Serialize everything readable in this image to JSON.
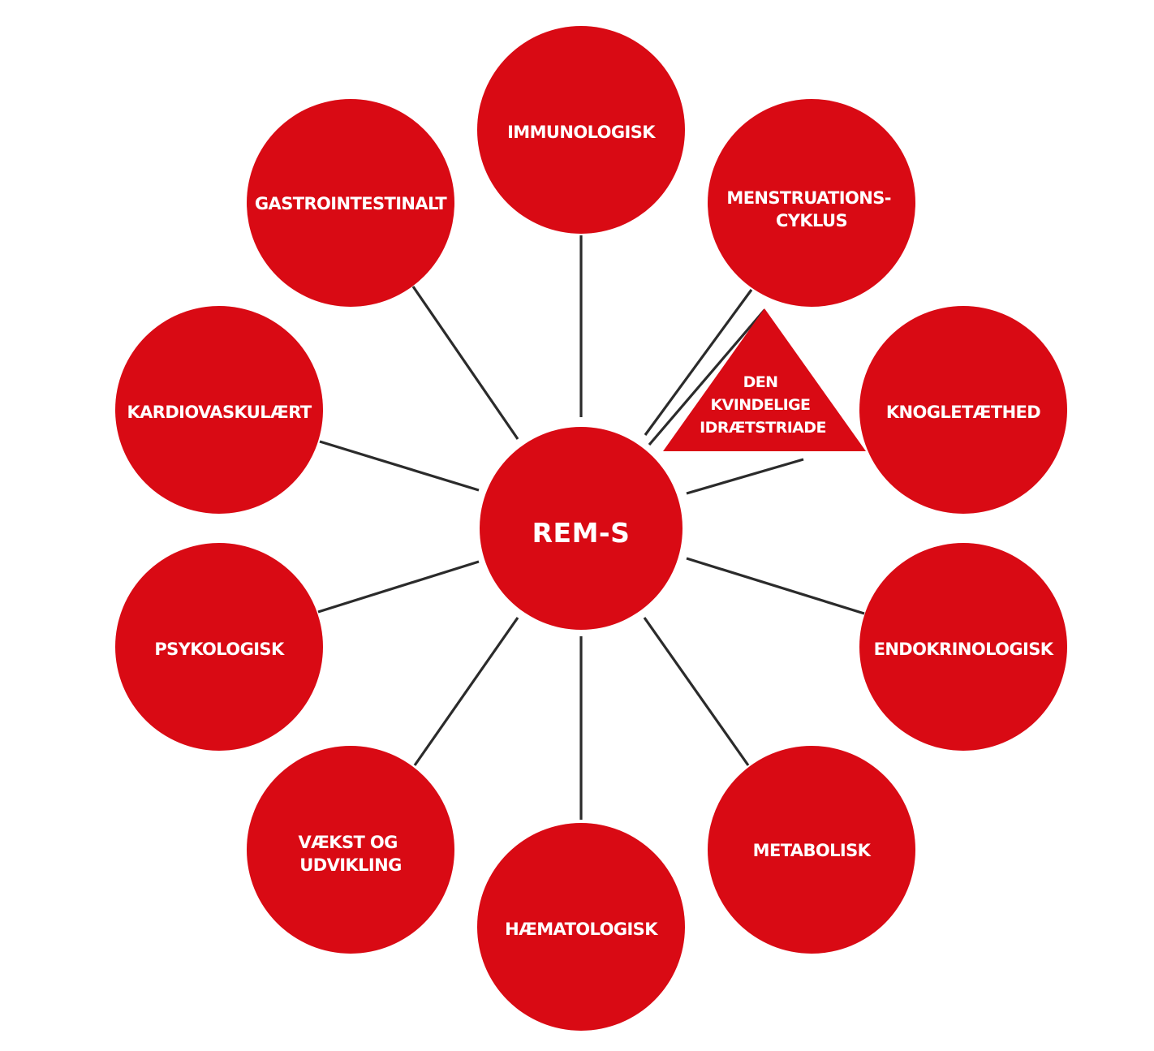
{
  "colors": {
    "node_fill": "#d90a14",
    "connector": "#2b2b2b",
    "label_text": "#ffffff"
  },
  "center": {
    "label": "REM-S"
  },
  "triad": {
    "lines": [
      "DEN",
      "KVINDELIGE",
      "IDRÆTSTRIADE"
    ]
  },
  "nodes": [
    {
      "id": "immunologisk",
      "lines": [
        "IMMUNOLOGISK"
      ]
    },
    {
      "id": "menstruationscyklus",
      "lines": [
        "MENSTRUATIONS-",
        "CYKLUS"
      ]
    },
    {
      "id": "knogletaethed",
      "lines": [
        "KNOGLETÆTHED"
      ]
    },
    {
      "id": "endokrinologisk",
      "lines": [
        "ENDOKRINOLOGISK"
      ]
    },
    {
      "id": "metabolisk",
      "lines": [
        "METABOLISK"
      ]
    },
    {
      "id": "haematologisk",
      "lines": [
        "HÆMATOLOGISK"
      ]
    },
    {
      "id": "vaekst-og-udvikling",
      "lines": [
        "VÆKST OG",
        "UDVIKLING"
      ]
    },
    {
      "id": "psykologisk",
      "lines": [
        "PSYKOLOGISK"
      ]
    },
    {
      "id": "kardiovaskulaert",
      "lines": [
        "KARDIOVASKULÆRT"
      ]
    },
    {
      "id": "gastrointestinalt",
      "lines": [
        "GASTROINTESTINALT"
      ]
    }
  ]
}
